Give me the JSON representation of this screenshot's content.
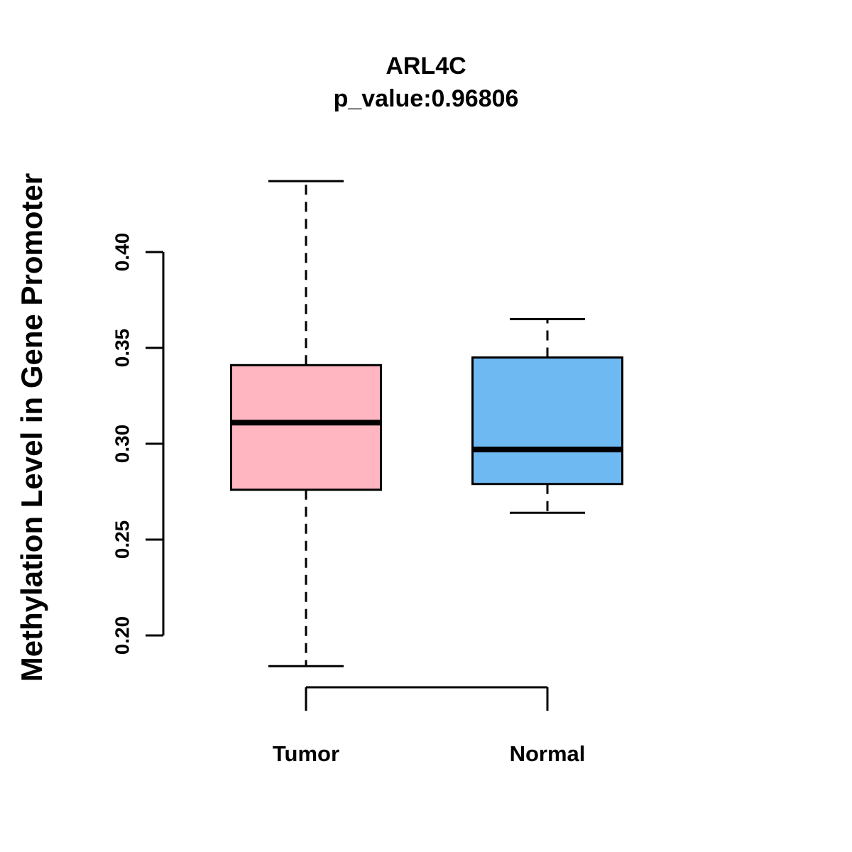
{
  "chart_data": {
    "type": "boxplot",
    "title": "ARL4C",
    "subtitle": "p_value:0.96806",
    "ylabel": "Methylation Level in Gene Promoter",
    "xlabel": "",
    "yticks": [
      "0.20",
      "0.25",
      "0.30",
      "0.35",
      "0.40"
    ],
    "ytick_values": [
      0.2,
      0.25,
      0.3,
      0.35,
      0.4
    ],
    "ylim": [
      0.18,
      0.44
    ],
    "grid": false,
    "legend": "none",
    "categories": [
      "Tumor",
      "Normal"
    ],
    "series": [
      {
        "name": "Tumor",
        "box_color": "#FFB6C1",
        "whisker_low": 0.184,
        "q1": 0.276,
        "median": 0.311,
        "q3": 0.341,
        "whisker_high": 0.437
      },
      {
        "name": "Normal",
        "box_color": "#6FB9F2",
        "whisker_low": 0.264,
        "q1": 0.279,
        "median": 0.297,
        "q3": 0.345,
        "whisker_high": 0.365
      }
    ],
    "stroke_color": "#000000",
    "background": "#FFFFFF"
  }
}
